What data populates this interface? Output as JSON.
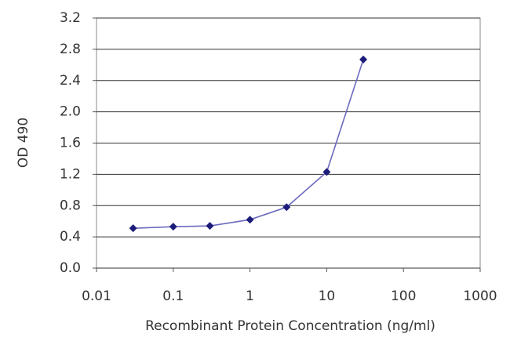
{
  "chart_data": {
    "type": "line",
    "x_label": "Recombinant Protein Concentration (ng/ml)",
    "y_label": "OD 490",
    "x": [
      0.03,
      0.1,
      0.3,
      1,
      3,
      10,
      30
    ],
    "series": [
      {
        "color": "#6b6bbf",
        "marker_color": "#1c1c7a",
        "values": [
          0.51,
          0.53,
          0.54,
          0.62,
          0.78,
          1.23,
          2.67
        ]
      }
    ],
    "xscale": "log",
    "xlim": [
      0.01,
      1000
    ],
    "xticks": [
      0.01,
      0.1,
      1,
      10,
      100,
      1000
    ],
    "ylim": [
      0,
      3.2
    ],
    "yticks": [
      {
        "value": 0,
        "label": "0.0"
      },
      0.4,
      0.8,
      1.2,
      1.6,
      {
        "value": 2,
        "label": "2.0"
      },
      2.4,
      2.8,
      3.2
    ],
    "grid": true
  }
}
